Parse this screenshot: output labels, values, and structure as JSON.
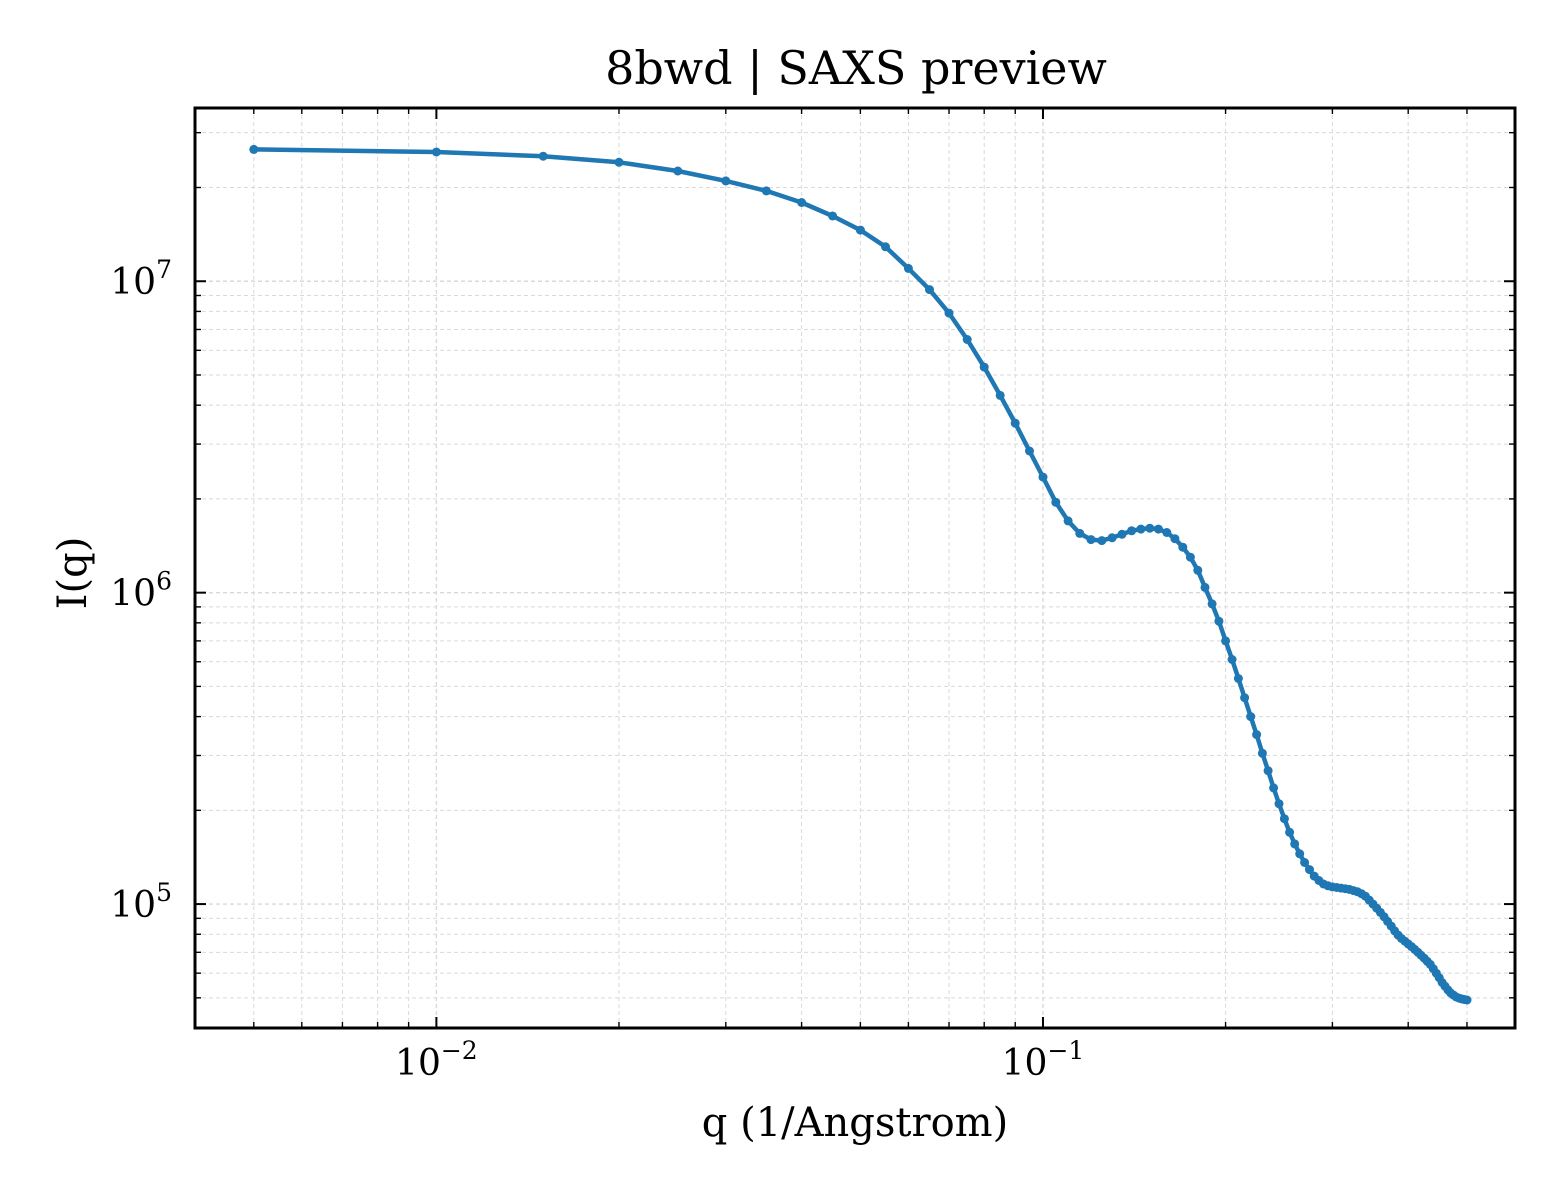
{
  "chart_data": {
    "type": "line",
    "title": "8bwd | SAXS preview",
    "xlabel": "q (1/Angstrom)",
    "ylabel": "I(q)",
    "xscale": "log",
    "yscale": "log",
    "xlim": [
      0.004,
      0.6
    ],
    "ylim": [
      40000,
      36000000
    ],
    "grid": true,
    "x_ticks": [
      {
        "value": 0.01,
        "base": "10",
        "exp": "−2"
      },
      {
        "value": 0.1,
        "base": "10",
        "exp": "−1"
      }
    ],
    "y_ticks": [
      {
        "value": 100000,
        "base": "10",
        "exp": "5"
      },
      {
        "value": 1000000,
        "base": "10",
        "exp": "6"
      },
      {
        "value": 10000000,
        "base": "10",
        "exp": "7"
      }
    ],
    "color": "#1f77b4",
    "series": [
      {
        "x": [
          0.005,
          0.01,
          0.015,
          0.02,
          0.025,
          0.03,
          0.035,
          0.04,
          0.045,
          0.05,
          0.055,
          0.06,
          0.065,
          0.07,
          0.075,
          0.08,
          0.085,
          0.09,
          0.095,
          0.1,
          0.105,
          0.11,
          0.115,
          0.12,
          0.125,
          0.13,
          0.135,
          0.14,
          0.145,
          0.15,
          0.155,
          0.16,
          0.165,
          0.17,
          0.175,
          0.18,
          0.185,
          0.19,
          0.195,
          0.2,
          0.205,
          0.21,
          0.215,
          0.22,
          0.225,
          0.23,
          0.235,
          0.24,
          0.245,
          0.25,
          0.255,
          0.26,
          0.265,
          0.27,
          0.275,
          0.28,
          0.285,
          0.29,
          0.295,
          0.3,
          0.305,
          0.31,
          0.315,
          0.32,
          0.325,
          0.33,
          0.335,
          0.34,
          0.345,
          0.35,
          0.355,
          0.36,
          0.365,
          0.37,
          0.375,
          0.38,
          0.385,
          0.39,
          0.395,
          0.4,
          0.405,
          0.41,
          0.415,
          0.42,
          0.425,
          0.43,
          0.435,
          0.44,
          0.445,
          0.45,
          0.455,
          0.46,
          0.465,
          0.47,
          0.475,
          0.48,
          0.485,
          0.49,
          0.495,
          0.5
        ],
        "y": [
          26500000,
          26000000,
          25200000,
          24100000,
          22600000,
          21000000,
          19500000,
          17900000,
          16200000,
          14600000,
          12900000,
          11000000,
          9400000,
          7900000,
          6500000,
          5300000,
          4300000,
          3500000,
          2850000,
          2350000,
          1950000,
          1700000,
          1550000,
          1480000,
          1470000,
          1500000,
          1540000,
          1580000,
          1600000,
          1610000,
          1600000,
          1560000,
          1490000,
          1400000,
          1300000,
          1180000,
          1040000,
          920000,
          810000,
          700000,
          610000,
          530000,
          460000,
          400000,
          350000,
          305000,
          268000,
          236000,
          210000,
          188000,
          170000,
          156000,
          145000,
          136000,
          129000,
          123000,
          119000,
          116000,
          114500,
          113500,
          113000,
          112500,
          112000,
          111500,
          110500,
          109500,
          108000,
          106000,
          103000,
          100000,
          97000,
          94000,
          91000,
          88000,
          85000,
          82000,
          79500,
          77500,
          76000,
          74500,
          73000,
          71500,
          70000,
          68500,
          67000,
          65500,
          64000,
          62000,
          60000,
          58000,
          56000,
          54500,
          53000,
          51800,
          51000,
          50300,
          49900,
          49600,
          49400,
          49200
        ]
      }
    ]
  }
}
